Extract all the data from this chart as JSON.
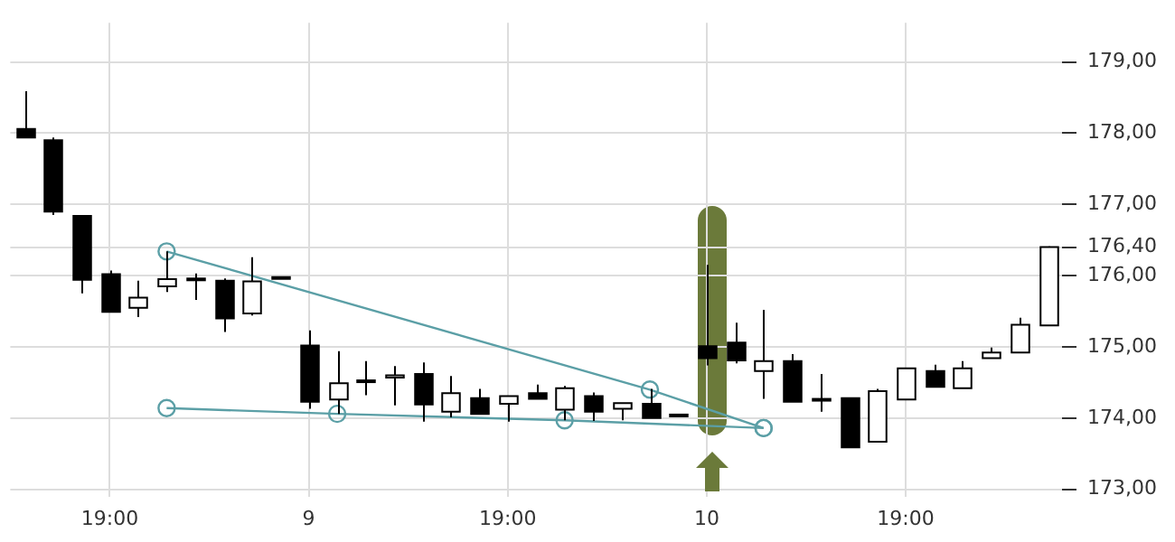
{
  "chart_data": {
    "type": "candlestick",
    "categories": [
      null,
      null,
      null,
      "19:00",
      null,
      null,
      null,
      null,
      null,
      null,
      "9",
      null,
      null,
      null,
      null,
      null,
      null,
      "19:00",
      null,
      null,
      null,
      null,
      null,
      null,
      "10",
      null,
      null,
      null,
      null,
      null,
      null,
      "19:00",
      null,
      null,
      null,
      null,
      null
    ],
    "ohlc": [
      [
        178.06,
        178.59,
        177.94,
        177.94
      ],
      [
        177.9,
        177.94,
        176.85,
        176.9
      ],
      [
        176.84,
        176.84,
        175.75,
        175.94
      ],
      [
        176.02,
        176.07,
        175.49,
        175.49
      ],
      [
        175.55,
        175.93,
        175.42,
        175.69
      ],
      [
        175.85,
        176.34,
        175.77,
        175.95
      ],
      [
        175.95,
        176.03,
        175.66,
        175.96
      ],
      [
        175.93,
        175.96,
        175.21,
        175.4
      ],
      [
        175.47,
        176.26,
        175.44,
        175.92
      ],
      [
        175.97,
        175.98,
        175.97,
        175.98
      ],
      [
        175.02,
        175.23,
        174.13,
        174.23
      ],
      [
        174.26,
        174.94,
        174.06,
        174.49
      ],
      [
        174.52,
        174.8,
        174.32,
        174.53
      ],
      [
        174.57,
        174.73,
        174.18,
        174.6
      ],
      [
        174.62,
        174.78,
        173.95,
        174.19
      ],
      [
        174.09,
        174.59,
        174.01,
        174.35
      ],
      [
        174.28,
        174.41,
        174.06,
        174.06
      ],
      [
        174.2,
        174.31,
        173.95,
        174.31
      ],
      [
        174.35,
        174.47,
        174.27,
        174.27
      ],
      [
        174.12,
        174.45,
        173.97,
        174.42
      ],
      [
        174.31,
        174.36,
        173.96,
        174.09
      ],
      [
        174.13,
        174.21,
        173.97,
        174.21
      ],
      [
        174.2,
        174.41,
        174.0,
        174.0
      ],
      [
        174.05,
        174.06,
        174.05,
        174.05
      ],
      [
        175.01,
        176.15,
        174.74,
        174.84
      ],
      [
        175.06,
        175.34,
        174.77,
        174.81
      ],
      [
        174.66,
        175.52,
        174.27,
        174.8
      ],
      [
        174.8,
        174.9,
        174.23,
        174.23
      ],
      [
        174.26,
        174.62,
        174.09,
        174.27
      ],
      [
        174.28,
        174.28,
        173.59,
        173.59
      ],
      [
        173.67,
        174.41,
        173.67,
        174.38
      ],
      [
        174.26,
        174.7,
        174.26,
        174.7
      ],
      [
        174.66,
        174.75,
        174.44,
        174.44
      ],
      [
        174.42,
        174.8,
        174.42,
        174.7
      ],
      [
        174.84,
        174.99,
        174.84,
        174.92
      ],
      [
        174.92,
        175.41,
        174.92,
        175.31
      ],
      [
        175.3,
        176.41,
        175.3,
        176.4
      ]
    ],
    "ylim": [
      172.9,
      179.55
    ],
    "yticks": [
      {
        "value": 173,
        "label": "173,00"
      },
      {
        "value": 174,
        "label": "174,00"
      },
      {
        "value": 175,
        "label": "175,00"
      },
      {
        "value": 176,
        "label": "176,00"
      },
      {
        "value": 176.4,
        "label": "176,40"
      },
      {
        "value": 177,
        "label": "177,00"
      },
      {
        "value": 178,
        "label": "178,00"
      },
      {
        "value": 179,
        "label": "179,00"
      }
    ],
    "grid": true,
    "legend": false,
    "marker": "circle",
    "series": [
      {
        "type": "line",
        "color": "#5b9fa6",
        "values": [
          null,
          null,
          null,
          null,
          null,
          176.34,
          null,
          null,
          null,
          null,
          null,
          null,
          null,
          null,
          null,
          null,
          null,
          null,
          null,
          null,
          null,
          null,
          174.4,
          null,
          null,
          null,
          173.86,
          null,
          null,
          null,
          null,
          null,
          null,
          null,
          null,
          null,
          null
        ]
      },
      {
        "type": "line",
        "color": "#5b9fa6",
        "values": [
          null,
          null,
          null,
          null,
          null,
          174.14,
          null,
          null,
          null,
          null,
          null,
          174.06,
          null,
          null,
          null,
          null,
          null,
          null,
          null,
          173.97,
          null,
          null,
          null,
          null,
          null,
          null,
          173.86,
          null,
          null,
          null,
          null,
          null,
          null,
          null,
          null,
          null,
          null
        ]
      }
    ]
  }
}
